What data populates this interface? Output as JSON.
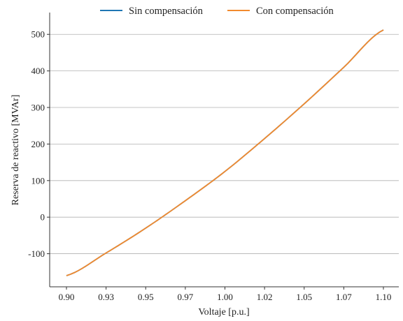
{
  "chart_data": {
    "type": "line",
    "title": "",
    "xlabel": "Voltaje [p.u.]",
    "ylabel": "Reserva de reactivo [MVAr]",
    "xlim": [
      0.9,
      1.1
    ],
    "ylim": [
      -160,
      510
    ],
    "xticks": [
      0.9,
      0.925,
      0.95,
      0.975,
      1.0,
      1.025,
      1.05,
      1.075,
      1.1
    ],
    "xtick_labels": [
      "0.90",
      "0.93",
      "0.95",
      "0.97",
      "1.00",
      "1.02",
      "1.05",
      "1.07",
      "1.10"
    ],
    "yticks": [
      -100,
      0,
      100,
      200,
      300,
      400,
      500
    ],
    "ytick_labels": [
      "-100",
      "0",
      "100",
      "200",
      "300",
      "400",
      "500"
    ],
    "grid": "horizontal",
    "legend_position": "top-center",
    "series": [
      {
        "name": "Sin compensación",
        "color": "#1f77b4",
        "x": [
          0.9,
          0.925,
          0.95,
          0.975,
          1.0,
          1.025,
          1.05,
          1.075,
          1.1
        ],
        "y": [
          -160,
          -98,
          -30,
          45,
          125,
          215,
          310,
          410,
          512
        ]
      },
      {
        "name": "Con compensación",
        "color": "#f28a2e",
        "x": [
          0.9,
          0.925,
          0.95,
          0.975,
          1.0,
          1.025,
          1.05,
          1.075,
          1.1
        ],
        "y": [
          -160,
          -98,
          -30,
          45,
          125,
          215,
          310,
          410,
          512
        ]
      }
    ]
  }
}
